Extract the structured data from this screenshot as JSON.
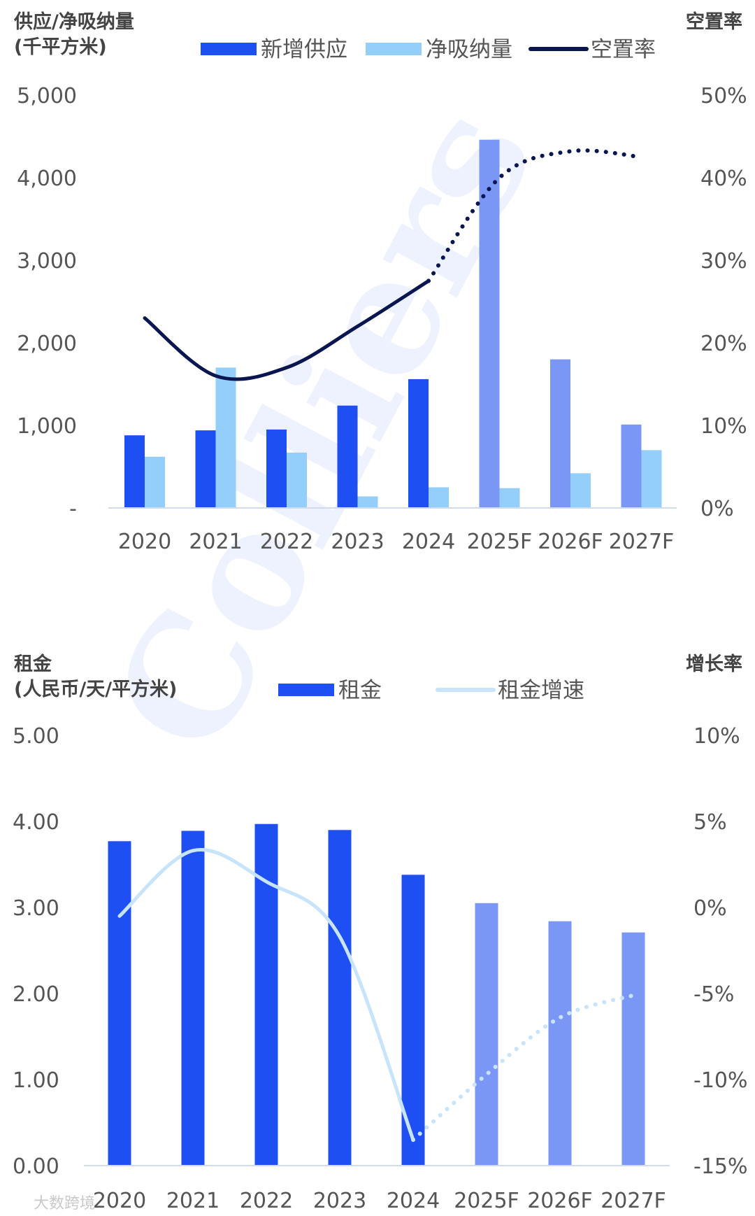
{
  "watermark": "Colliers",
  "corner_watermark": "大数跨境",
  "colors": {
    "supply": "#1E4FF2",
    "supply_forecast": "#7B97F5",
    "absorption": "#93CFFA",
    "vacancy_line": "#0A1650",
    "rent": "#1E4FF2",
    "rent_forecast": "#7B97F5",
    "rent_growth_line": "#C7E4FB",
    "axis_line": "#D0DCEE",
    "text": "#555555",
    "title_text": "#444444"
  },
  "chart_data": [
    {
      "type": "bar",
      "title": "",
      "ylabel": "供应/净吸纳量\n(千平方米)",
      "y2label": "空置率",
      "categories": [
        "2020",
        "2021",
        "2022",
        "2023",
        "2024",
        "2025F",
        "2026F",
        "2027F"
      ],
      "forecast_categories": [
        "2025F",
        "2026F",
        "2027F"
      ],
      "ylim": [
        0,
        5000
      ],
      "y_ticks": [
        "-",
        "1,000",
        "2,000",
        "3,000",
        "4,000",
        "5,000"
      ],
      "y2lim": [
        0,
        0.5
      ],
      "y2_ticks": [
        "0%",
        "10%",
        "20%",
        "30%",
        "40%",
        "50%"
      ],
      "legend_position": "top",
      "grid": false,
      "series": [
        {
          "name": "新增供应",
          "kind": "bar",
          "values": [
            880,
            940,
            950,
            1240,
            1560,
            4460,
            1800,
            1010
          ]
        },
        {
          "name": "净吸纳量",
          "kind": "bar",
          "values": [
            620,
            1700,
            670,
            140,
            250,
            240,
            420,
            700
          ]
        },
        {
          "name": "空置率",
          "kind": "line",
          "axis": "right",
          "values": [
            0.23,
            0.16,
            0.17,
            0.22,
            0.275,
            0.4,
            0.432,
            0.425
          ],
          "dotted_from": "2024"
        }
      ]
    },
    {
      "type": "bar",
      "title": "",
      "ylabel": "租金\n(人民币/天/平方米)",
      "y2label": "增长率",
      "categories": [
        "2020",
        "2021",
        "2022",
        "2023",
        "2024",
        "2025F",
        "2026F",
        "2027F"
      ],
      "forecast_categories": [
        "2025F",
        "2026F",
        "2027F"
      ],
      "ylim": [
        0,
        5
      ],
      "y_ticks": [
        "0.00",
        "1.00",
        "2.00",
        "3.00",
        "4.00",
        "5.00"
      ],
      "y2lim": [
        -0.15,
        0.1
      ],
      "y2_ticks": [
        "-15%",
        "-10%",
        "-5%",
        "0%",
        "5%",
        "10%"
      ],
      "legend_position": "top",
      "grid": false,
      "series": [
        {
          "name": "租金",
          "kind": "bar",
          "values": [
            3.77,
            3.89,
            3.97,
            3.9,
            3.38,
            3.05,
            2.84,
            2.71
          ]
        },
        {
          "name": "租金增速",
          "kind": "line",
          "axis": "right",
          "values": [
            -0.005,
            0.033,
            0.015,
            -0.017,
            -0.135,
            -0.097,
            -0.064,
            -0.051
          ],
          "dotted_from": "2024"
        }
      ]
    }
  ]
}
